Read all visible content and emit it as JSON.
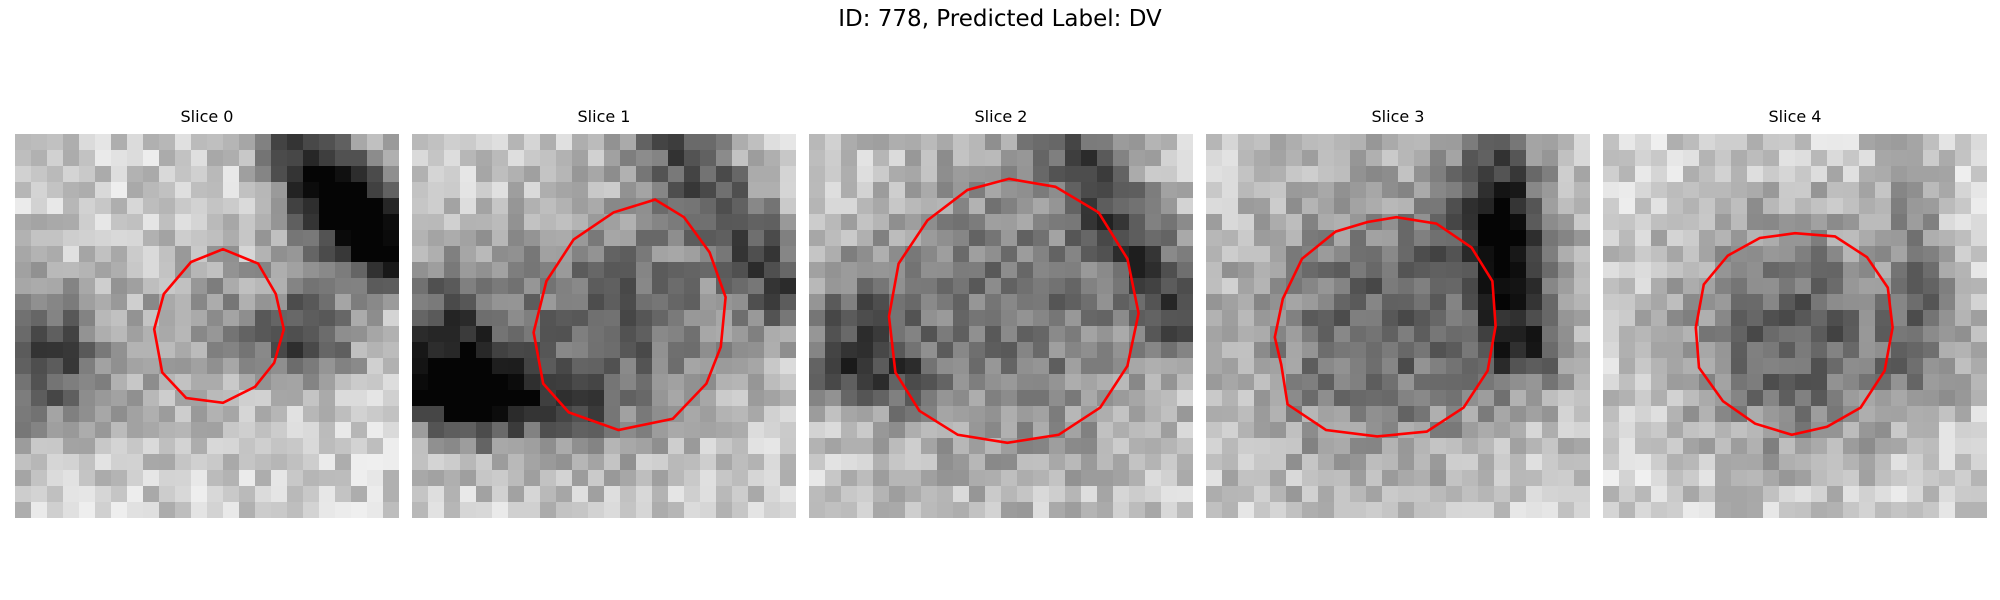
{
  "figure": {
    "title": "ID: 778, Predicted Label: DV",
    "contour_color": "#ff0000",
    "colormap": "grayscale",
    "axes_visible": false
  },
  "panels": [
    {
      "title": "Slice 0",
      "seed": 11,
      "contour": [
        [
          13,
          7.2
        ],
        [
          15.2,
          8.1
        ],
        [
          16.3,
          10
        ],
        [
          16.8,
          12.2
        ],
        [
          16.2,
          14.3
        ],
        [
          15,
          15.8
        ],
        [
          13,
          16.8
        ],
        [
          10.7,
          16.5
        ],
        [
          9.2,
          14.9
        ],
        [
          8.7,
          12.2
        ],
        [
          9.3,
          10
        ],
        [
          11,
          8
        ]
      ]
    },
    {
      "title": "Slice 1",
      "seed": 23,
      "contour": [
        [
          15.2,
          4.1
        ],
        [
          17,
          5.2
        ],
        [
          18.6,
          7.4
        ],
        [
          19.6,
          10.2
        ],
        [
          19.3,
          13.3
        ],
        [
          18.4,
          15.6
        ],
        [
          16.3,
          17.8
        ],
        [
          12.9,
          18.5
        ],
        [
          9.8,
          17.4
        ],
        [
          8.2,
          15.6
        ],
        [
          7.6,
          12.4
        ],
        [
          8.4,
          9.2
        ],
        [
          10.1,
          6.6
        ],
        [
          12.6,
          4.9
        ]
      ]
    },
    {
      "title": "Slice 2",
      "seed": 37,
      "contour": [
        [
          12.5,
          2.8
        ],
        [
          15.4,
          3.3
        ],
        [
          18.1,
          4.9
        ],
        [
          19.9,
          7.8
        ],
        [
          20.6,
          11.2
        ],
        [
          19.9,
          14.5
        ],
        [
          18.2,
          17.1
        ],
        [
          15.6,
          18.8
        ],
        [
          12.4,
          19.3
        ],
        [
          9.3,
          18.8
        ],
        [
          6.9,
          17.3
        ],
        [
          5.4,
          14.9
        ],
        [
          5,
          11.4
        ],
        [
          5.6,
          8.1
        ],
        [
          7.4,
          5.4
        ],
        [
          9.9,
          3.5
        ]
      ]
    },
    {
      "title": "Slice 3",
      "seed": 49,
      "contour": [
        [
          11.9,
          5.2
        ],
        [
          14.4,
          5.6
        ],
        [
          16.6,
          7.1
        ],
        [
          17.9,
          9.2
        ],
        [
          18.1,
          12
        ],
        [
          17.6,
          14.8
        ],
        [
          16.1,
          17.1
        ],
        [
          13.8,
          18.6
        ],
        [
          10.7,
          18.9
        ],
        [
          7.5,
          18.5
        ],
        [
          5.1,
          16.9
        ],
        [
          4.7,
          14.4
        ],
        [
          4.3,
          12.7
        ],
        [
          4.8,
          10.3
        ],
        [
          6,
          7.8
        ],
        [
          8.1,
          6.1
        ],
        [
          10.1,
          5.5
        ]
      ]
    },
    {
      "title": "Slice 4",
      "seed": 61,
      "contour": [
        [
          12,
          6.2
        ],
        [
          14.5,
          6.4
        ],
        [
          16.5,
          7.7
        ],
        [
          17.8,
          9.6
        ],
        [
          18.1,
          12.1
        ],
        [
          17.6,
          14.8
        ],
        [
          16.1,
          17.1
        ],
        [
          14,
          18.3
        ],
        [
          11.8,
          18.8
        ],
        [
          9.5,
          18.1
        ],
        [
          7.5,
          16.7
        ],
        [
          6,
          14.6
        ],
        [
          5.8,
          12.1
        ],
        [
          6.3,
          9.4
        ],
        [
          7.8,
          7.6
        ],
        [
          9.8,
          6.5
        ]
      ]
    }
  ]
}
